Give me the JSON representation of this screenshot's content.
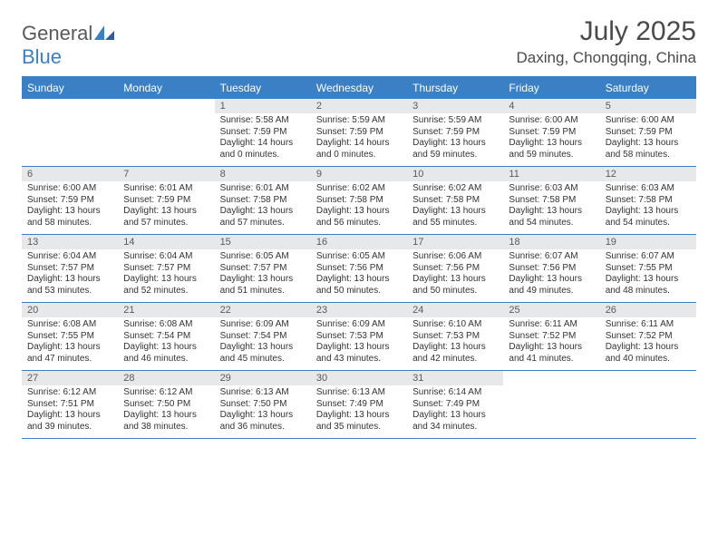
{
  "brand": {
    "name_part1": "General",
    "name_part2": "Blue"
  },
  "title": "July 2025",
  "location": "Daxing, Chongqing, China",
  "colors": {
    "accent": "#3b7fc4",
    "header_bg": "#3b7fc4",
    "header_text": "#ffffff",
    "daynum_bg": "#e7e8ea",
    "text": "#333333",
    "logo_gray": "#58595b"
  },
  "weekdays": [
    "Sunday",
    "Monday",
    "Tuesday",
    "Wednesday",
    "Thursday",
    "Friday",
    "Saturday"
  ],
  "weeks": [
    [
      {
        "n": "",
        "lines": [
          "",
          "",
          "",
          ""
        ]
      },
      {
        "n": "",
        "lines": [
          "",
          "",
          "",
          ""
        ]
      },
      {
        "n": "1",
        "lines": [
          "Sunrise: 5:58 AM",
          "Sunset: 7:59 PM",
          "Daylight: 14 hours",
          "and 0 minutes."
        ]
      },
      {
        "n": "2",
        "lines": [
          "Sunrise: 5:59 AM",
          "Sunset: 7:59 PM",
          "Daylight: 14 hours",
          "and 0 minutes."
        ]
      },
      {
        "n": "3",
        "lines": [
          "Sunrise: 5:59 AM",
          "Sunset: 7:59 PM",
          "Daylight: 13 hours",
          "and 59 minutes."
        ]
      },
      {
        "n": "4",
        "lines": [
          "Sunrise: 6:00 AM",
          "Sunset: 7:59 PM",
          "Daylight: 13 hours",
          "and 59 minutes."
        ]
      },
      {
        "n": "5",
        "lines": [
          "Sunrise: 6:00 AM",
          "Sunset: 7:59 PM",
          "Daylight: 13 hours",
          "and 58 minutes."
        ]
      }
    ],
    [
      {
        "n": "6",
        "lines": [
          "Sunrise: 6:00 AM",
          "Sunset: 7:59 PM",
          "Daylight: 13 hours",
          "and 58 minutes."
        ]
      },
      {
        "n": "7",
        "lines": [
          "Sunrise: 6:01 AM",
          "Sunset: 7:59 PM",
          "Daylight: 13 hours",
          "and 57 minutes."
        ]
      },
      {
        "n": "8",
        "lines": [
          "Sunrise: 6:01 AM",
          "Sunset: 7:58 PM",
          "Daylight: 13 hours",
          "and 57 minutes."
        ]
      },
      {
        "n": "9",
        "lines": [
          "Sunrise: 6:02 AM",
          "Sunset: 7:58 PM",
          "Daylight: 13 hours",
          "and 56 minutes."
        ]
      },
      {
        "n": "10",
        "lines": [
          "Sunrise: 6:02 AM",
          "Sunset: 7:58 PM",
          "Daylight: 13 hours",
          "and 55 minutes."
        ]
      },
      {
        "n": "11",
        "lines": [
          "Sunrise: 6:03 AM",
          "Sunset: 7:58 PM",
          "Daylight: 13 hours",
          "and 54 minutes."
        ]
      },
      {
        "n": "12",
        "lines": [
          "Sunrise: 6:03 AM",
          "Sunset: 7:58 PM",
          "Daylight: 13 hours",
          "and 54 minutes."
        ]
      }
    ],
    [
      {
        "n": "13",
        "lines": [
          "Sunrise: 6:04 AM",
          "Sunset: 7:57 PM",
          "Daylight: 13 hours",
          "and 53 minutes."
        ]
      },
      {
        "n": "14",
        "lines": [
          "Sunrise: 6:04 AM",
          "Sunset: 7:57 PM",
          "Daylight: 13 hours",
          "and 52 minutes."
        ]
      },
      {
        "n": "15",
        "lines": [
          "Sunrise: 6:05 AM",
          "Sunset: 7:57 PM",
          "Daylight: 13 hours",
          "and 51 minutes."
        ]
      },
      {
        "n": "16",
        "lines": [
          "Sunrise: 6:05 AM",
          "Sunset: 7:56 PM",
          "Daylight: 13 hours",
          "and 50 minutes."
        ]
      },
      {
        "n": "17",
        "lines": [
          "Sunrise: 6:06 AM",
          "Sunset: 7:56 PM",
          "Daylight: 13 hours",
          "and 50 minutes."
        ]
      },
      {
        "n": "18",
        "lines": [
          "Sunrise: 6:07 AM",
          "Sunset: 7:56 PM",
          "Daylight: 13 hours",
          "and 49 minutes."
        ]
      },
      {
        "n": "19",
        "lines": [
          "Sunrise: 6:07 AM",
          "Sunset: 7:55 PM",
          "Daylight: 13 hours",
          "and 48 minutes."
        ]
      }
    ],
    [
      {
        "n": "20",
        "lines": [
          "Sunrise: 6:08 AM",
          "Sunset: 7:55 PM",
          "Daylight: 13 hours",
          "and 47 minutes."
        ]
      },
      {
        "n": "21",
        "lines": [
          "Sunrise: 6:08 AM",
          "Sunset: 7:54 PM",
          "Daylight: 13 hours",
          "and 46 minutes."
        ]
      },
      {
        "n": "22",
        "lines": [
          "Sunrise: 6:09 AM",
          "Sunset: 7:54 PM",
          "Daylight: 13 hours",
          "and 45 minutes."
        ]
      },
      {
        "n": "23",
        "lines": [
          "Sunrise: 6:09 AM",
          "Sunset: 7:53 PM",
          "Daylight: 13 hours",
          "and 43 minutes."
        ]
      },
      {
        "n": "24",
        "lines": [
          "Sunrise: 6:10 AM",
          "Sunset: 7:53 PM",
          "Daylight: 13 hours",
          "and 42 minutes."
        ]
      },
      {
        "n": "25",
        "lines": [
          "Sunrise: 6:11 AM",
          "Sunset: 7:52 PM",
          "Daylight: 13 hours",
          "and 41 minutes."
        ]
      },
      {
        "n": "26",
        "lines": [
          "Sunrise: 6:11 AM",
          "Sunset: 7:52 PM",
          "Daylight: 13 hours",
          "and 40 minutes."
        ]
      }
    ],
    [
      {
        "n": "27",
        "lines": [
          "Sunrise: 6:12 AM",
          "Sunset: 7:51 PM",
          "Daylight: 13 hours",
          "and 39 minutes."
        ]
      },
      {
        "n": "28",
        "lines": [
          "Sunrise: 6:12 AM",
          "Sunset: 7:50 PM",
          "Daylight: 13 hours",
          "and 38 minutes."
        ]
      },
      {
        "n": "29",
        "lines": [
          "Sunrise: 6:13 AM",
          "Sunset: 7:50 PM",
          "Daylight: 13 hours",
          "and 36 minutes."
        ]
      },
      {
        "n": "30",
        "lines": [
          "Sunrise: 6:13 AM",
          "Sunset: 7:49 PM",
          "Daylight: 13 hours",
          "and 35 minutes."
        ]
      },
      {
        "n": "31",
        "lines": [
          "Sunrise: 6:14 AM",
          "Sunset: 7:49 PM",
          "Daylight: 13 hours",
          "and 34 minutes."
        ]
      },
      {
        "n": "",
        "lines": [
          "",
          "",
          "",
          ""
        ]
      },
      {
        "n": "",
        "lines": [
          "",
          "",
          "",
          ""
        ]
      }
    ]
  ]
}
